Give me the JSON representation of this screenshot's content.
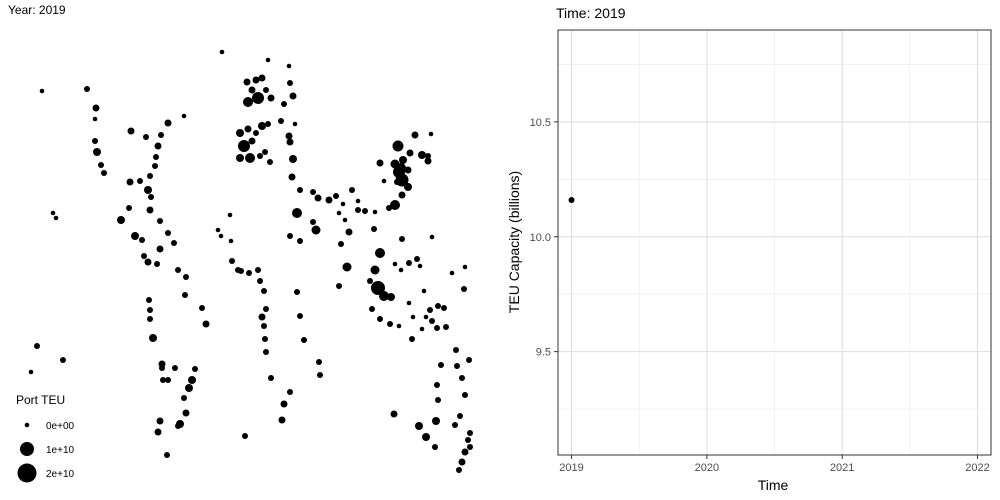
{
  "left_panel": {
    "title": "Year: 2019",
    "legend": {
      "title": "Port TEU",
      "entries": [
        {
          "label": "0e+00",
          "value": 0
        },
        {
          "label": "1e+10",
          "value": 10000000000
        },
        {
          "label": "2e+10",
          "value": 20000000000
        }
      ]
    }
  },
  "chart_data": {
    "type": "scatter",
    "title": "Time: 2019",
    "xlabel": "Time",
    "ylabel": "TEU Capacity (billions)",
    "xlim": [
      2018.9,
      2022.1
    ],
    "ylim": [
      9.05,
      10.9
    ],
    "x_ticks": [
      2019,
      2020,
      2021,
      2022
    ],
    "x_tick_labels": [
      "2019",
      "2020",
      "2021",
      "2022"
    ],
    "y_ticks": [
      9.5,
      10.0,
      10.5
    ],
    "y_tick_labels": [
      "9.5",
      "10.0",
      "10.5"
    ],
    "grid": true,
    "points": [
      {
        "x": 2019,
        "y": 10.16
      }
    ]
  }
}
